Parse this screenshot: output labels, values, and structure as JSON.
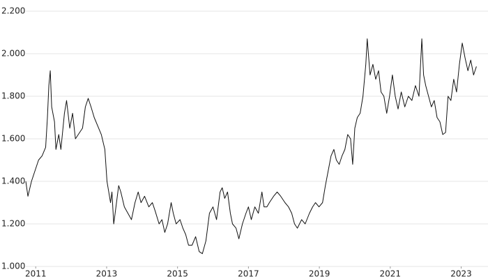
{
  "chart_data": {
    "type": "line",
    "x": [
      2010.72,
      2010.78,
      2010.88,
      2010.98,
      2011.08,
      2011.18,
      2011.28,
      2011.33,
      2011.37,
      2011.41,
      2011.45,
      2011.53,
      2011.57,
      2011.65,
      2011.71,
      2011.81,
      2011.87,
      2011.96,
      2012.04,
      2012.12,
      2012.2,
      2012.32,
      2012.4,
      2012.48,
      2012.56,
      2012.65,
      2012.75,
      2012.85,
      2012.95,
      2013.01,
      2013.05,
      2013.11,
      2013.15,
      2013.2,
      2013.24,
      2013.34,
      2013.4,
      2013.5,
      2013.6,
      2013.7,
      2013.8,
      2013.89,
      2013.97,
      2014.07,
      2014.19,
      2014.29,
      2014.37,
      2014.48,
      2014.56,
      2014.64,
      2014.72,
      2014.82,
      2014.88,
      2014.96,
      2015.07,
      2015.15,
      2015.23,
      2015.31,
      2015.41,
      2015.51,
      2015.61,
      2015.7,
      2015.8,
      2015.9,
      2016.0,
      2016.1,
      2016.2,
      2016.26,
      2016.33,
      2016.41,
      2016.49,
      2016.55,
      2016.65,
      2016.73,
      2016.83,
      2016.93,
      2017.0,
      2017.08,
      2017.18,
      2017.28,
      2017.38,
      2017.44,
      2017.52,
      2017.59,
      2017.71,
      2017.81,
      2017.91,
      2018.03,
      2018.13,
      2018.22,
      2018.3,
      2018.38,
      2018.5,
      2018.6,
      2018.72,
      2018.81,
      2018.89,
      2018.99,
      2019.09,
      2019.17,
      2019.25,
      2019.33,
      2019.41,
      2019.48,
      2019.56,
      2019.64,
      2019.72,
      2019.8,
      2019.88,
      2019.94,
      2020.0,
      2020.07,
      2020.15,
      2020.23,
      2020.31,
      2020.35,
      2020.43,
      2020.51,
      2020.59,
      2020.67,
      2020.74,
      2020.82,
      2020.9,
      2020.98,
      2021.06,
      2021.14,
      2021.22,
      2021.31,
      2021.41,
      2021.51,
      2021.61,
      2021.71,
      2021.81,
      2021.89,
      2021.94,
      2022.0,
      2022.08,
      2022.16,
      2022.24,
      2022.32,
      2022.4,
      2022.48,
      2022.56,
      2022.63,
      2022.71,
      2022.79,
      2022.87,
      2022.95,
      2023.03,
      2023.11,
      2023.19,
      2023.27,
      2023.35,
      2023.43
    ],
    "series": [
      {
        "color": "#111111",
        "values": [
          1.4,
          1.33,
          1.4,
          1.45,
          1.5,
          1.52,
          1.56,
          1.7,
          1.85,
          1.92,
          1.75,
          1.68,
          1.55,
          1.62,
          1.55,
          1.72,
          1.78,
          1.65,
          1.72,
          1.6,
          1.62,
          1.65,
          1.75,
          1.79,
          1.75,
          1.7,
          1.66,
          1.62,
          1.55,
          1.4,
          1.36,
          1.3,
          1.35,
          1.2,
          1.25,
          1.38,
          1.35,
          1.28,
          1.25,
          1.22,
          1.3,
          1.35,
          1.3,
          1.33,
          1.28,
          1.3,
          1.26,
          1.2,
          1.22,
          1.16,
          1.2,
          1.3,
          1.25,
          1.2,
          1.22,
          1.18,
          1.15,
          1.1,
          1.1,
          1.14,
          1.07,
          1.06,
          1.12,
          1.25,
          1.28,
          1.22,
          1.35,
          1.37,
          1.32,
          1.35,
          1.25,
          1.2,
          1.18,
          1.13,
          1.2,
          1.25,
          1.28,
          1.22,
          1.28,
          1.25,
          1.35,
          1.28,
          1.28,
          1.3,
          1.33,
          1.35,
          1.33,
          1.3,
          1.28,
          1.25,
          1.2,
          1.18,
          1.22,
          1.2,
          1.25,
          1.28,
          1.3,
          1.28,
          1.3,
          1.38,
          1.45,
          1.52,
          1.55,
          1.5,
          1.48,
          1.52,
          1.55,
          1.62,
          1.6,
          1.48,
          1.65,
          1.7,
          1.72,
          1.8,
          1.95,
          2.07,
          1.9,
          1.95,
          1.88,
          1.92,
          1.82,
          1.8,
          1.72,
          1.8,
          1.9,
          1.8,
          1.74,
          1.82,
          1.75,
          1.8,
          1.78,
          1.85,
          1.8,
          2.07,
          1.9,
          1.85,
          1.8,
          1.75,
          1.78,
          1.7,
          1.68,
          1.62,
          1.63,
          1.8,
          1.78,
          1.88,
          1.82,
          1.95,
          2.05,
          1.98,
          1.92,
          1.97,
          1.9,
          1.94
        ]
      }
    ],
    "xlim": [
      2010.72,
      2023.56
    ],
    "xticks": [
      2011,
      2013,
      2015,
      2017,
      2019,
      2021,
      2023
    ],
    "ylim": [
      1.0,
      2.2
    ],
    "yticks": [
      {
        "value": 1.0,
        "label": "1.000"
      },
      {
        "value": 1.2,
        "label": "1.200"
      },
      {
        "value": 1.4,
        "label": "1.400"
      },
      {
        "value": 1.6,
        "label": "1.600"
      },
      {
        "value": 1.8,
        "label": "1.800"
      },
      {
        "value": 2.0,
        "label": "2.000"
      },
      {
        "value": 2.2,
        "label": "2.200"
      }
    ],
    "grid": true
  }
}
